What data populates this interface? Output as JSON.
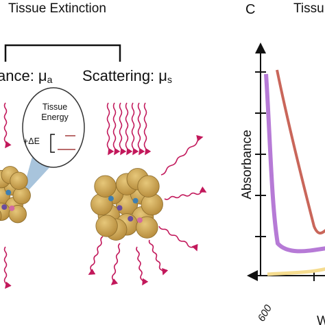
{
  "left_panel": {
    "title": "Tissue Extinction",
    "absorbance_label": "ance: μ",
    "absorbance_subscript": "a",
    "scattering_label": "Scattering: μ",
    "scattering_subscript": "s",
    "inset": {
      "line1": "Tissue",
      "line2": "Energy",
      "delta": "+ΔE"
    }
  },
  "right_panel": {
    "panel_letter": "C",
    "title": "Tissu",
    "y_axis_label": "Absorbance",
    "x_tick": "600",
    "x_axis_label": "W"
  }
}
